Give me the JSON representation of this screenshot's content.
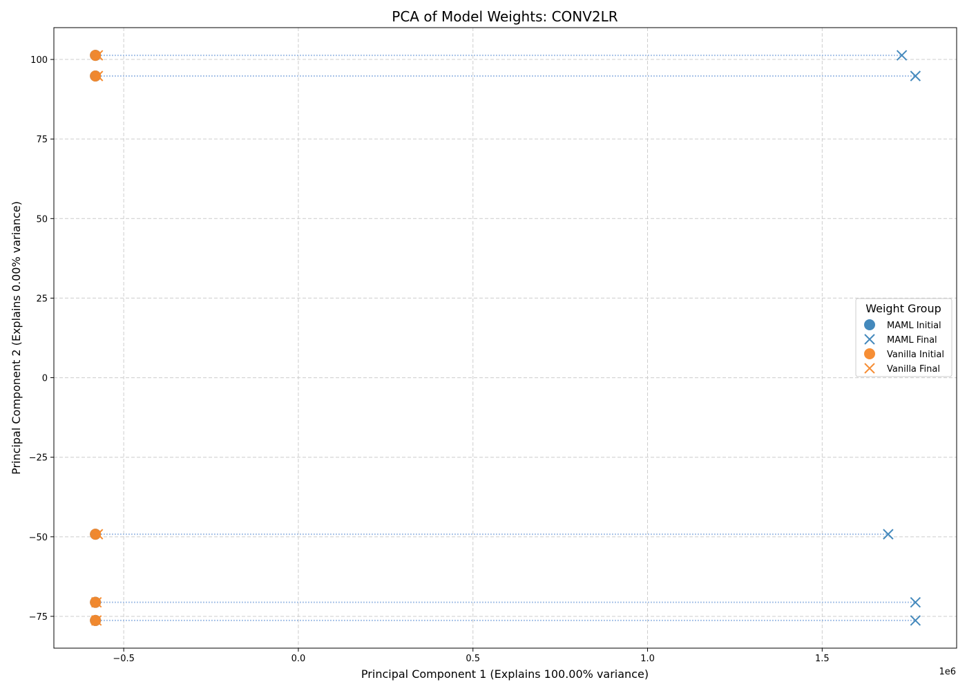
{
  "chart_data": {
    "type": "scatter",
    "title": "PCA of Model Weights: CONV2LR",
    "xlabel": "Principal Component 1 (Explains 100.00% variance)",
    "ylabel": "Principal Component 2 (Explains 0.00% variance)",
    "x_offset_label": "1e6",
    "xlim": [
      -0.7,
      1.885
    ],
    "ylim": [
      -85,
      110
    ],
    "x_ticks": [
      -0.5,
      0.0,
      0.5,
      1.0,
      1.5
    ],
    "x_tick_labels": [
      "−0.5",
      "0.0",
      "0.5",
      "1.0",
      "1.5"
    ],
    "y_ticks": [
      -75,
      -50,
      -25,
      0,
      25,
      50,
      75,
      100
    ],
    "y_tick_labels": [
      "−75",
      "−50",
      "−25",
      "0",
      "25",
      "50",
      "75",
      "100"
    ],
    "grid": true,
    "legend": {
      "title": "Weight Group",
      "placement": "center-right"
    },
    "colors": {
      "maml": "#3a83b8",
      "vanilla": "#f5882a",
      "connector": "#8aaee0"
    },
    "series": [
      {
        "name": "MAML Initial",
        "marker": "circle",
        "color_key": "maml",
        "points": [
          {
            "x": -0.581,
            "y": 101.3
          },
          {
            "x": -0.581,
            "y": 94.8
          },
          {
            "x": -0.581,
            "y": -49.2
          },
          {
            "x": -0.581,
            "y": -70.6
          },
          {
            "x": -0.581,
            "y": -76.3
          }
        ]
      },
      {
        "name": "MAML Final",
        "marker": "x",
        "color_key": "maml",
        "points": [
          {
            "x": 1.728,
            "y": 101.3
          },
          {
            "x": 1.767,
            "y": 94.8
          },
          {
            "x": 1.689,
            "y": -49.2
          },
          {
            "x": 1.767,
            "y": -70.6
          },
          {
            "x": 1.767,
            "y": -76.3
          }
        ]
      },
      {
        "name": "Vanilla Initial",
        "marker": "circle",
        "color_key": "vanilla",
        "points": [
          {
            "x": -0.581,
            "y": 101.3
          },
          {
            "x": -0.581,
            "y": 94.8
          },
          {
            "x": -0.581,
            "y": -49.2
          },
          {
            "x": -0.581,
            "y": -70.6
          },
          {
            "x": -0.581,
            "y": -76.3
          }
        ]
      },
      {
        "name": "Vanilla Final",
        "marker": "x",
        "color_key": "vanilla",
        "points": [
          {
            "x": -0.574,
            "y": 101.3
          },
          {
            "x": -0.574,
            "y": 94.8
          },
          {
            "x": -0.574,
            "y": -49.2
          },
          {
            "x": -0.578,
            "y": -70.6
          },
          {
            "x": -0.578,
            "y": -76.3
          }
        ]
      }
    ]
  }
}
